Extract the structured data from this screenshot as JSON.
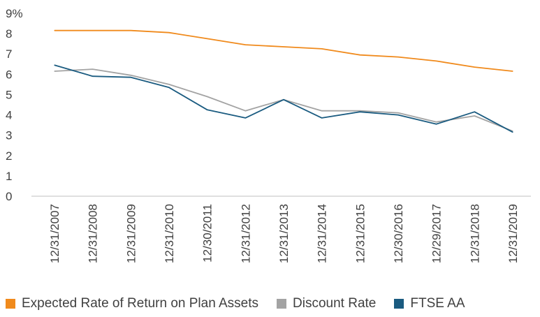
{
  "chart_data": {
    "type": "line",
    "categories": [
      "12/31/2007",
      "12/31/2008",
      "12/31/2009",
      "12/31/2010",
      "12/30/2011",
      "12/31/2012",
      "12/31/2013",
      "12/31/2014",
      "12/31/2015",
      "12/30/2016",
      "12/29/2017",
      "12/31/2018",
      "12/31/2019"
    ],
    "series": [
      {
        "name": "Expected Rate of Return on Plan Assets",
        "color": "#f08a1c",
        "values": [
          8.15,
          8.15,
          8.15,
          8.05,
          7.75,
          7.45,
          7.35,
          7.25,
          6.95,
          6.85,
          6.65,
          6.35,
          6.15
        ]
      },
      {
        "name": "Discount Rate",
        "color": "#a3a3a3",
        "values": [
          6.15,
          6.25,
          5.95,
          5.5,
          4.9,
          4.2,
          4.75,
          4.2,
          4.2,
          4.1,
          3.65,
          3.95,
          3.2
        ]
      },
      {
        "name": "FTSE AA",
        "color": "#1a5b80",
        "values": [
          6.45,
          5.9,
          5.85,
          5.35,
          4.25,
          3.85,
          4.75,
          3.85,
          4.15,
          4.0,
          3.55,
          4.15,
          3.15
        ]
      }
    ],
    "ylim": [
      0,
      9
    ],
    "yticks": [
      "0",
      "1",
      "2",
      "3",
      "4",
      "5",
      "6",
      "7",
      "8",
      "9%"
    ],
    "grid": false,
    "legend_position": "bottom"
  }
}
